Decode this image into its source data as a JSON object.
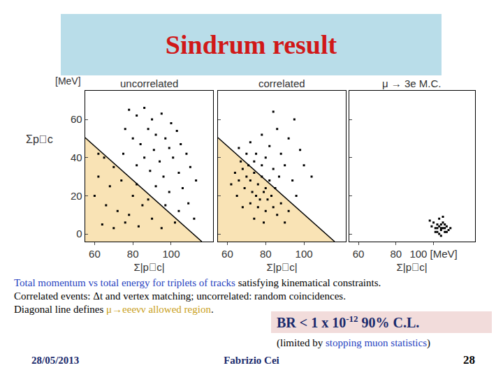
{
  "chart_data": [
    {
      "type": "scatter",
      "title": "uncorrelated",
      "x_label": "Σ|p⃗c|",
      "y_label": "Σp⃗c",
      "y_unit": "[MeV]",
      "color": "#000000",
      "marker": "square",
      "xlim": [
        55,
        122
      ],
      "xticks": [
        60,
        80,
        100
      ],
      "ylim": [
        -4,
        75
      ],
      "yticks": [
        0,
        20,
        40,
        60
      ],
      "diagonal_line": {
        "x": [
          55,
          116
        ],
        "y": [
          50.5,
          -4
        ]
      },
      "x": [
        78,
        82,
        86,
        90,
        95,
        100,
        88,
        92,
        97,
        103,
        80,
        84,
        76,
        99,
        105,
        91,
        86,
        94,
        101,
        108,
        82,
        89,
        96,
        104,
        110,
        75,
        92,
        99,
        106,
        113,
        97,
        104,
        109,
        112,
        102,
        65,
        70,
        62,
        68,
        74,
        80,
        66,
        72,
        78,
        85,
        64,
        70,
        76,
        83,
        90,
        95,
        88,
        82,
        60,
        62
      ],
      "y": [
        65,
        62,
        66,
        60,
        63,
        58,
        55,
        52,
        50,
        54,
        50,
        47,
        55,
        45,
        47,
        44,
        40,
        38,
        40,
        42,
        36,
        33,
        30,
        32,
        35,
        42,
        25,
        22,
        24,
        28,
        15,
        12,
        16,
        8,
        6,
        40,
        35,
        30,
        25,
        28,
        20,
        15,
        12,
        10,
        15,
        5,
        3,
        6,
        4,
        8,
        3,
        18,
        26,
        20,
        42
      ]
    },
    {
      "type": "scatter",
      "title": "correlated",
      "x_label": "Σ|p⃗c|",
      "color": "#000000",
      "marker": "square",
      "tick_labels": "x",
      "xlim": [
        55,
        122
      ],
      "xticks": [
        60,
        80,
        100
      ],
      "ylim": [
        -4,
        75
      ],
      "yticks": [
        0,
        20,
        40,
        60
      ],
      "diagonal_line": {
        "x": [
          55,
          116
        ],
        "y": [
          50.5,
          -4
        ]
      },
      "x": [
        70,
        72,
        74,
        76,
        78,
        80,
        73,
        75,
        77,
        79,
        81,
        83,
        71,
        74,
        68,
        66,
        69,
        72,
        76,
        80,
        84,
        86,
        88,
        82,
        85,
        78,
        75,
        70,
        67,
        64,
        62,
        65,
        68,
        74,
        79,
        90,
        92,
        87,
        84,
        80,
        82,
        88,
        90,
        94,
        96,
        86,
        78,
        92,
        98,
        100,
        95,
        84,
        104,
        72,
        66
      ],
      "y": [
        30,
        28,
        32,
        26,
        30,
        24,
        22,
        20,
        18,
        22,
        18,
        20,
        36,
        38,
        34,
        28,
        24,
        16,
        14,
        12,
        14,
        10,
        16,
        28,
        24,
        36,
        42,
        42,
        38,
        32,
        26,
        20,
        14,
        8,
        6,
        6,
        12,
        30,
        34,
        40,
        46,
        42,
        36,
        28,
        20,
        55,
        52,
        50,
        44,
        36,
        60,
        64,
        30,
        48,
        45
      ]
    },
    {
      "type": "scatter",
      "title": "μ → 3e M.C.",
      "x_label": "Σ|p⃗c|",
      "color": "#000000",
      "marker": "square",
      "tick_labels": "x",
      "xlim": [
        55,
        122
      ],
      "xticks": [
        60,
        80,
        {
          "value": 100,
          "label": "100 [MeV]"
        }
      ],
      "ylim": [
        -4,
        75
      ],
      "yticks": [
        0,
        20,
        40,
        60
      ],
      "x": [
        101,
        102,
        103,
        104,
        105,
        106,
        107,
        104,
        103,
        105,
        108,
        102,
        106,
        101,
        104,
        107,
        100,
        98,
        99,
        103,
        105,
        109,
        106,
        104,
        102
      ],
      "y": [
        3,
        1,
        4,
        2,
        3,
        1,
        4,
        5,
        0,
        6,
        2,
        5,
        5,
        1,
        -1,
        1,
        6,
        7,
        4,
        8,
        9,
        3,
        3,
        3,
        3
      ]
    }
  ],
  "slide": {
    "title": "Sindrum result",
    "caption": [
      [
        {
          "text": "Total momentum vs total energy for triplets of tracks",
          "color": "#1f3fbf"
        },
        {
          "text": " satisfying kinematical constraints."
        }
      ],
      [
        {
          "text": "Correlated events: Δt and vertex matching; uncorrelated: random coincidences."
        }
      ],
      [
        {
          "text": "Diagonal line defines "
        },
        {
          "text": "μ→eeeνν allowed region",
          "color": "#c9a018"
        },
        {
          "text": "."
        }
      ]
    ],
    "result": {
      "text": "BR < 1 x 10",
      "sup": "-12",
      "after": " 90% C.L."
    },
    "note": [
      {
        "text": "(limited by "
      },
      {
        "text": "stopping muon statistics",
        "color": "#1f3fbf"
      },
      {
        "text": ")"
      }
    ],
    "footer": {
      "date": "28/05/2013",
      "author": "Fabrizio Cei",
      "page": "28"
    }
  }
}
